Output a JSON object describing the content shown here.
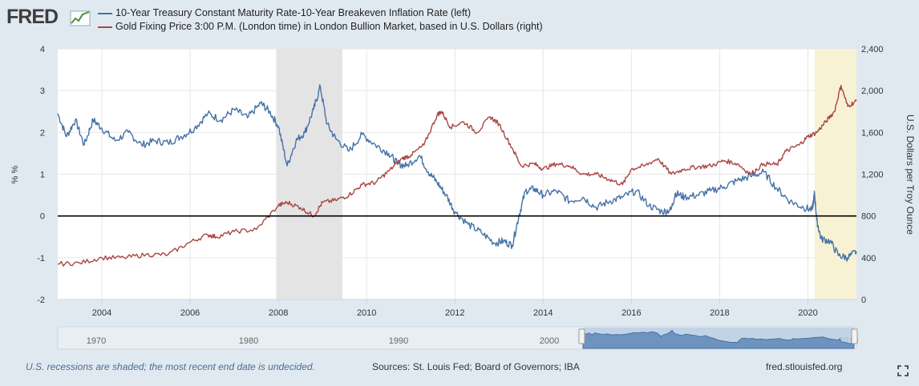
{
  "header": {
    "logo_text": "FRED"
  },
  "legend": [
    {
      "label": "10-Year Treasury Constant Maturity Rate-10-Year Breakeven Inflation Rate (left)",
      "color": "#4572a7"
    },
    {
      "label": "Gold Fixing Price 3:00 P.M. (London time) in London Bullion Market, based in U.S. Dollars (right)",
      "color": "#aa4643"
    }
  ],
  "footer": {
    "recession_note": "U.S. recessions are shaded; the most recent end date is undecided.",
    "sources": "Sources: St. Louis Fed; Board of Governors; IBA",
    "site": "fred.stlouisfed.org"
  },
  "navigator": {
    "tick_labels": [
      "1970",
      "1980",
      "1990",
      "2000",
      "2010"
    ]
  },
  "chart_data": {
    "type": "line",
    "x_range": [
      2003.0,
      2021.1
    ],
    "x_ticks": [
      2004,
      2006,
      2008,
      2010,
      2012,
      2014,
      2016,
      2018,
      2020
    ],
    "x_tick_labels": [
      "2004",
      "2006",
      "2008",
      "2010",
      "2012",
      "2014",
      "2016",
      "2018",
      "2020"
    ],
    "left_axis": {
      "label": "% %",
      "range": [
        -2,
        4
      ],
      "ticks": [
        -2,
        -1,
        0,
        1,
        2,
        3,
        4
      ],
      "tick_labels": [
        "-2",
        "-1",
        "0",
        "1",
        "2",
        "3",
        "4"
      ]
    },
    "right_axis": {
      "label": "U.S. Dollars per Troy Ounce",
      "range": [
        0,
        2400
      ],
      "ticks": [
        0,
        400,
        800,
        1200,
        1600,
        2000,
        2400
      ],
      "tick_labels": [
        "0",
        "400",
        "800",
        "1,200",
        "1,600",
        "2,000",
        "2,400"
      ]
    },
    "recessions": [
      {
        "start": 2007.95,
        "end": 2009.45,
        "color": "#e4e4e4"
      }
    ],
    "highlight": {
      "start": 2020.15,
      "end": 2021.1,
      "color": "#f7f2d4"
    },
    "series": [
      {
        "name": "10-Year Treasury Constant Maturity Rate-10-Year Breakeven Inflation Rate (left)",
        "axis": "left",
        "color": "#4572a7",
        "x": [
          2003.0,
          2003.2,
          2003.4,
          2003.6,
          2003.8,
          2004.0,
          2004.3,
          2004.6,
          2004.9,
          2005.2,
          2005.5,
          2005.8,
          2006.1,
          2006.4,
          2006.7,
          2007.0,
          2007.3,
          2007.6,
          2007.8,
          2008.0,
          2008.2,
          2008.4,
          2008.6,
          2008.8,
          2008.95,
          2009.1,
          2009.3,
          2009.6,
          2009.9,
          2010.2,
          2010.5,
          2010.7,
          2010.9,
          2011.2,
          2011.4,
          2011.6,
          2011.8,
          2012.0,
          2012.3,
          2012.6,
          2012.9,
          2013.1,
          2013.3,
          2013.45,
          2013.6,
          2013.8,
          2014.0,
          2014.3,
          2014.6,
          2014.9,
          2015.2,
          2015.5,
          2015.8,
          2016.1,
          2016.4,
          2016.7,
          2016.9,
          2017.0,
          2017.2,
          2017.5,
          2017.8,
          2018.1,
          2018.4,
          2018.7,
          2019.0,
          2019.3,
          2019.6,
          2019.9,
          2020.1,
          2020.15,
          2020.2,
          2020.3,
          2020.5,
          2020.7,
          2020.9,
          2021.1
        ],
        "values": [
          2.45,
          1.9,
          2.3,
          1.7,
          2.3,
          2.1,
          1.8,
          2.0,
          1.7,
          1.8,
          1.75,
          1.9,
          2.1,
          2.45,
          2.3,
          2.55,
          2.35,
          2.7,
          2.5,
          2.15,
          1.2,
          1.8,
          2.0,
          2.55,
          3.1,
          2.2,
          1.85,
          1.55,
          1.95,
          1.7,
          1.5,
          1.25,
          1.2,
          1.45,
          1.05,
          0.8,
          0.5,
          0.1,
          -0.2,
          -0.4,
          -0.65,
          -0.6,
          -0.7,
          0.0,
          0.6,
          0.65,
          0.5,
          0.6,
          0.35,
          0.45,
          0.2,
          0.35,
          0.45,
          0.6,
          0.25,
          0.1,
          0.15,
          0.55,
          0.45,
          0.5,
          0.6,
          0.7,
          0.85,
          0.95,
          1.05,
          0.65,
          0.35,
          0.2,
          0.15,
          0.55,
          -0.1,
          -0.55,
          -0.6,
          -0.95,
          -1.0,
          -0.85
        ]
      },
      {
        "name": "Gold Fixing Price 3:00 P.M. (London time) in London Bullion Market, based in U.S. Dollars (right)",
        "axis": "right",
        "color": "#aa4643",
        "x": [
          2003.0,
          2003.5,
          2004.0,
          2004.5,
          2005.0,
          2005.5,
          2006.0,
          2006.4,
          2006.6,
          2007.0,
          2007.5,
          2008.0,
          2008.2,
          2008.5,
          2008.8,
          2009.0,
          2009.3,
          2009.6,
          2009.9,
          2010.2,
          2010.5,
          2010.8,
          2011.0,
          2011.3,
          2011.6,
          2011.7,
          2011.9,
          2012.2,
          2012.5,
          2012.8,
          2013.0,
          2013.3,
          2013.5,
          2013.8,
          2014.0,
          2014.3,
          2014.6,
          2014.9,
          2015.2,
          2015.5,
          2015.8,
          2016.0,
          2016.3,
          2016.6,
          2016.9,
          2017.2,
          2017.5,
          2017.8,
          2018.1,
          2018.4,
          2018.7,
          2019.0,
          2019.3,
          2019.5,
          2019.8,
          2020.0,
          2020.2,
          2020.4,
          2020.6,
          2020.75,
          2020.9,
          2021.1
        ],
        "values": [
          340,
          350,
          400,
          400,
          430,
          430,
          550,
          620,
          600,
          650,
          670,
          900,
          930,
          880,
          800,
          930,
          950,
          1000,
          1100,
          1120,
          1230,
          1350,
          1380,
          1480,
          1770,
          1800,
          1650,
          1700,
          1600,
          1750,
          1680,
          1450,
          1280,
          1300,
          1250,
          1300,
          1280,
          1200,
          1200,
          1150,
          1100,
          1250,
          1280,
          1350,
          1200,
          1250,
          1270,
          1280,
          1330,
          1300,
          1200,
          1300,
          1290,
          1420,
          1480,
          1560,
          1600,
          1700,
          1800,
          2050,
          1850,
          1900
        ]
      }
    ]
  }
}
